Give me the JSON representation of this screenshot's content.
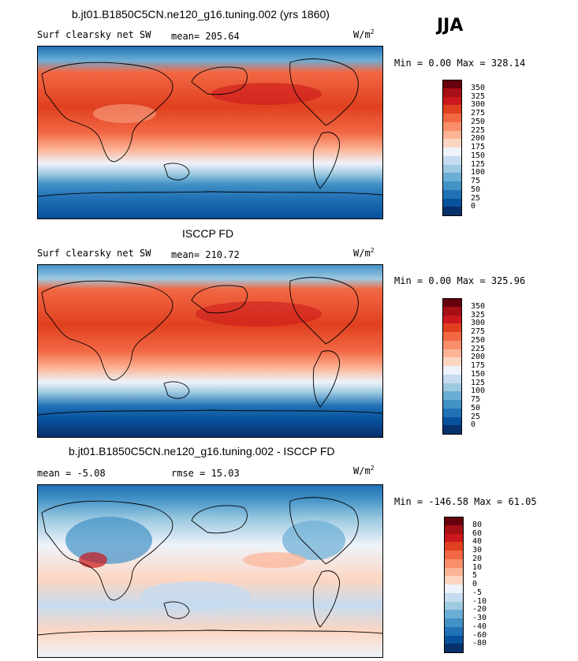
{
  "season": "JJA",
  "panels": [
    {
      "title": "b.jt01.B1850C5CN.ne120_g16.tuning.002 (yrs 1860)",
      "left_label": "Surf clearsky net SW",
      "stat1": "mean= 205.64",
      "stat2": "",
      "units": "W/m",
      "units_sup": "2",
      "minmax": "Min =    0.00 Max = 328.14",
      "colorbar": {
        "colors": [
          "#67000d",
          "#a50f15",
          "#cb181d",
          "#e0401f",
          "#f26844",
          "#f98e6b",
          "#fcb497",
          "#fdd6c2",
          "#eef3fb",
          "#c6dbef",
          "#9ecae1",
          "#6aaed6",
          "#4292c6",
          "#2171b5",
          "#08519c",
          "#08306b"
        ],
        "labels": [
          "350",
          "325",
          "300",
          "275",
          "250",
          "225",
          "200",
          "175",
          "150",
          "125",
          "100",
          "75",
          "50",
          "25",
          "0"
        ]
      }
    },
    {
      "title": "ISCCP FD",
      "left_label": "Surf clearsky net SW",
      "stat1": "mean= 210.72",
      "stat2": "",
      "units": "W/m",
      "units_sup": "2",
      "minmax": "Min =    0.00 Max = 325.96",
      "colorbar": {
        "colors": [
          "#67000d",
          "#a50f15",
          "#cb181d",
          "#e0401f",
          "#f26844",
          "#f98e6b",
          "#fcb497",
          "#fdd6c2",
          "#eef3fb",
          "#c6dbef",
          "#9ecae1",
          "#6aaed6",
          "#4292c6",
          "#2171b5",
          "#08519c",
          "#08306b"
        ],
        "labels": [
          "350",
          "325",
          "300",
          "275",
          "250",
          "225",
          "200",
          "175",
          "150",
          "125",
          "100",
          "75",
          "50",
          "25",
          "0"
        ]
      }
    },
    {
      "title": "b.jt01.B1850C5CN.ne120_g16.tuning.002 - ISCCP FD",
      "left_label": "mean =   -5.08",
      "stat1": "rmse =   15.03",
      "stat2": "",
      "units": "W/m",
      "units_sup": "2",
      "minmax": "Min = -146.58 Max =  61.05",
      "colorbar": {
        "colors": [
          "#67000d",
          "#a50f15",
          "#cb181d",
          "#e0401f",
          "#f26844",
          "#f98e6b",
          "#fcb497",
          "#fdd6c2",
          "#eef3fb",
          "#c6dbef",
          "#9ecae1",
          "#6aaed6",
          "#4292c6",
          "#2171b5",
          "#08519c",
          "#08306b"
        ],
        "labels": [
          "80",
          "60",
          "40",
          "30",
          "20",
          "10",
          "5",
          "0",
          "-5",
          "-10",
          "-20",
          "-30",
          "-40",
          "-60",
          "-80"
        ]
      }
    }
  ]
}
